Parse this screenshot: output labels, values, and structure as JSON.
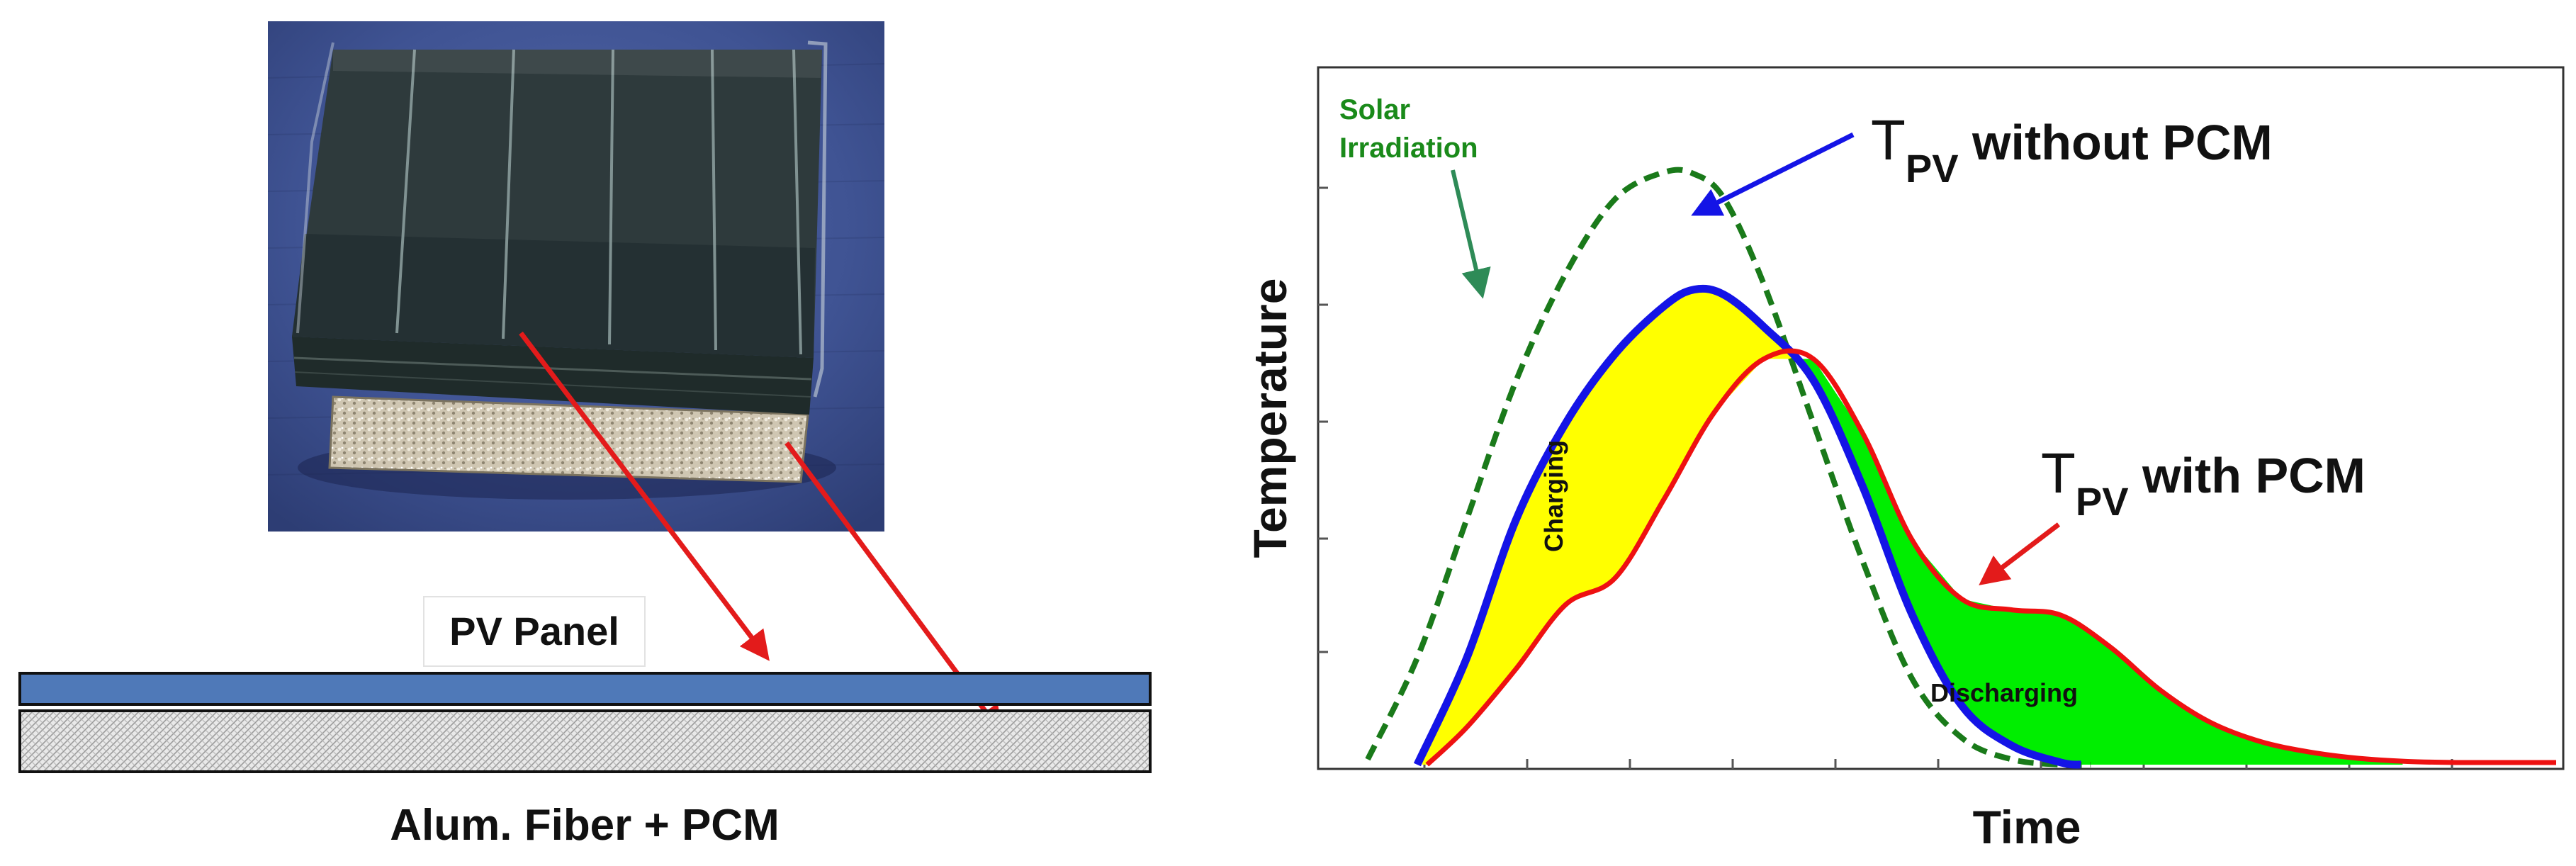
{
  "left_panel": {
    "pv_label": "PV Panel",
    "fiber_label": "Alum. Fiber + PCM",
    "photo_desc_icon": "solar-cell-sample-photo"
  },
  "chart_data": {
    "type": "line",
    "xlabel": "Time",
    "ylabel": "Temperature",
    "grid": false,
    "xlim": [
      0,
      12
    ],
    "ylim": [
      0,
      6
    ],
    "series": [
      {
        "name": "Solar Irradiation",
        "style": "dashed",
        "color": "#1a7a1a",
        "x": [
          0.0,
          0.5,
          1.0,
          1.5,
          2.0,
          2.5,
          3.0,
          3.3,
          3.6,
          4.0,
          4.5,
          5.0,
          5.5,
          6.0,
          6.5,
          7.0,
          7.3
        ],
        "y": [
          0.05,
          1.0,
          2.3,
          3.6,
          4.6,
          5.3,
          5.55,
          5.53,
          5.3,
          4.5,
          3.2,
          1.9,
          0.8,
          0.25,
          0.05,
          0.0,
          0.0
        ]
      },
      {
        "name": "T_PV without PCM",
        "style": "solid",
        "color": "#1414e6",
        "x": [
          0.5,
          1.0,
          1.5,
          2.0,
          2.5,
          3.0,
          3.3,
          3.6,
          4.0,
          4.5,
          5.0,
          5.5,
          6.0,
          6.5,
          7.0,
          7.2
        ],
        "y": [
          0.0,
          1.0,
          2.3,
          3.2,
          3.85,
          4.3,
          4.45,
          4.4,
          4.1,
          3.6,
          2.6,
          1.4,
          0.55,
          0.18,
          0.02,
          0.0
        ]
      },
      {
        "name": "T_PV with PCM",
        "style": "solid",
        "color": "#ee1111",
        "x": [
          0.6,
          1.0,
          1.5,
          2.0,
          2.5,
          3.0,
          3.5,
          4.0,
          4.5,
          5.0,
          5.5,
          6.0,
          6.5,
          7.0,
          7.5,
          8.0,
          8.5,
          9.0,
          9.5,
          10.0,
          10.5,
          11.0,
          11.5,
          12.0
        ],
        "y": [
          0.0,
          0.35,
          0.9,
          1.5,
          1.75,
          2.5,
          3.3,
          3.8,
          3.8,
          3.1,
          2.1,
          1.55,
          1.45,
          1.4,
          1.1,
          0.7,
          0.4,
          0.22,
          0.12,
          0.06,
          0.03,
          0.02,
          0.02,
          0.02
        ]
      }
    ],
    "annotations": {
      "solar_label_1": "Solar",
      "solar_label_2": "Irradiation",
      "tpv_without_T": "T",
      "tpv_without_sub": "PV",
      "tpv_without_rest": " without PCM",
      "tpv_with_T": "T",
      "tpv_with_sub": "PV",
      "tpv_with_rest": " with PCM",
      "charging": "Charging",
      "discharging": "Discharging"
    }
  }
}
